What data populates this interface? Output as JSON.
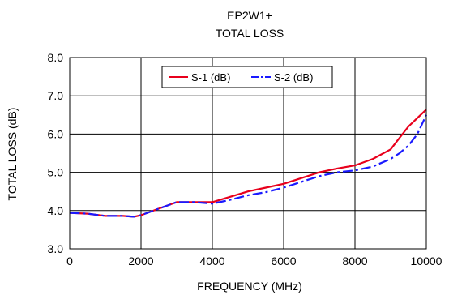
{
  "chart_data": {
    "type": "line",
    "title": "EP2W1+",
    "subtitle": "TOTAL LOSS",
    "xlabel": "FREQUENCY (MHz)",
    "ylabel": "TOTAL  LOSS (dB)",
    "xlim": [
      0,
      10000
    ],
    "ylim": [
      3.0,
      8.0
    ],
    "x_ticks": [
      "0",
      "2000",
      "4000",
      "6000",
      "8000",
      "10000"
    ],
    "y_ticks": [
      "3.0",
      "4.0",
      "5.0",
      "6.0",
      "7.0",
      "8.0"
    ],
    "x_tick_values": [
      0,
      2000,
      4000,
      6000,
      8000,
      10000
    ],
    "y_tick_values": [
      3.0,
      4.0,
      5.0,
      6.0,
      7.0,
      8.0
    ],
    "grid": true,
    "legend_position": "top-right",
    "series": [
      {
        "name": "S-1 (dB)",
        "color": "#e8001c",
        "dash": "solid",
        "x": [
          10,
          500,
          1000,
          1500,
          1800,
          2000,
          2500,
          3000,
          3500,
          4000,
          4500,
          5000,
          5500,
          6000,
          6500,
          7000,
          7500,
          8000,
          8500,
          9000,
          9250,
          9500,
          9750,
          10000
        ],
        "y": [
          3.94,
          3.92,
          3.86,
          3.86,
          3.84,
          3.88,
          4.05,
          4.22,
          4.22,
          4.22,
          4.36,
          4.5,
          4.6,
          4.7,
          4.85,
          5.0,
          5.1,
          5.18,
          5.35,
          5.6,
          5.9,
          6.2,
          6.42,
          6.64
        ]
      },
      {
        "name": "S-2 (dB)",
        "color": "#1a1aff",
        "dash": "dashdot",
        "x": [
          10,
          500,
          1000,
          1500,
          1800,
          2000,
          2500,
          3000,
          3500,
          4000,
          4500,
          5000,
          5500,
          6000,
          6500,
          7000,
          7500,
          8000,
          8500,
          9000,
          9250,
          9500,
          9750,
          10000
        ],
        "y": [
          3.94,
          3.92,
          3.86,
          3.86,
          3.84,
          3.88,
          4.05,
          4.22,
          4.22,
          4.18,
          4.28,
          4.4,
          4.48,
          4.6,
          4.75,
          4.9,
          5.0,
          5.05,
          5.15,
          5.35,
          5.5,
          5.7,
          6.0,
          6.5
        ]
      }
    ]
  }
}
